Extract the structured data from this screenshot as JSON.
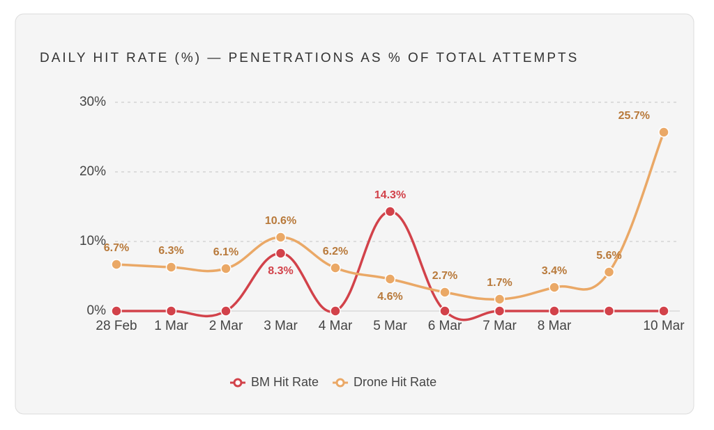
{
  "chart_data": {
    "type": "line",
    "title": "DAILY HIT RATE (%) — PENETRATIONS AS % OF TOTAL ATTEMPTS",
    "categories": [
      "28 Feb",
      "1 Mar",
      "2 Mar",
      "3 Mar",
      "4 Mar",
      "5 Mar",
      "6 Mar",
      "7 Mar",
      "8 Mar",
      null,
      "10 Mar"
    ],
    "series": [
      {
        "name": "BM Hit Rate",
        "color": "#d2424a",
        "label_color": "#d2424a",
        "values": [
          0,
          0,
          0,
          8.3,
          0,
          14.3,
          0,
          0,
          0,
          0,
          0
        ],
        "value_labels": [
          null,
          null,
          null,
          "8.3%",
          null,
          "14.3%",
          null,
          null,
          null,
          null,
          null
        ]
      },
      {
        "name": "Drone Hit Rate",
        "color": "#eaa866",
        "label_color": "#b8793a",
        "values": [
          6.7,
          6.3,
          6.1,
          10.6,
          6.2,
          4.6,
          2.7,
          1.7,
          3.4,
          5.6,
          25.7
        ],
        "value_labels": [
          "6.7%",
          "6.3%",
          "6.1%",
          "10.6%",
          "6.2%",
          "4.6%",
          "2.7%",
          "1.7%",
          "3.4%",
          "5.6%",
          "25.7%"
        ]
      }
    ],
    "ylim": [
      0,
      30
    ],
    "yticks": [
      {
        "value": 0,
        "label": "0%"
      },
      {
        "value": 10,
        "label": "10%"
      },
      {
        "value": 20,
        "label": "20%"
      },
      {
        "value": 30,
        "label": "30%"
      }
    ],
    "grid": true,
    "legend": "bottom"
  }
}
